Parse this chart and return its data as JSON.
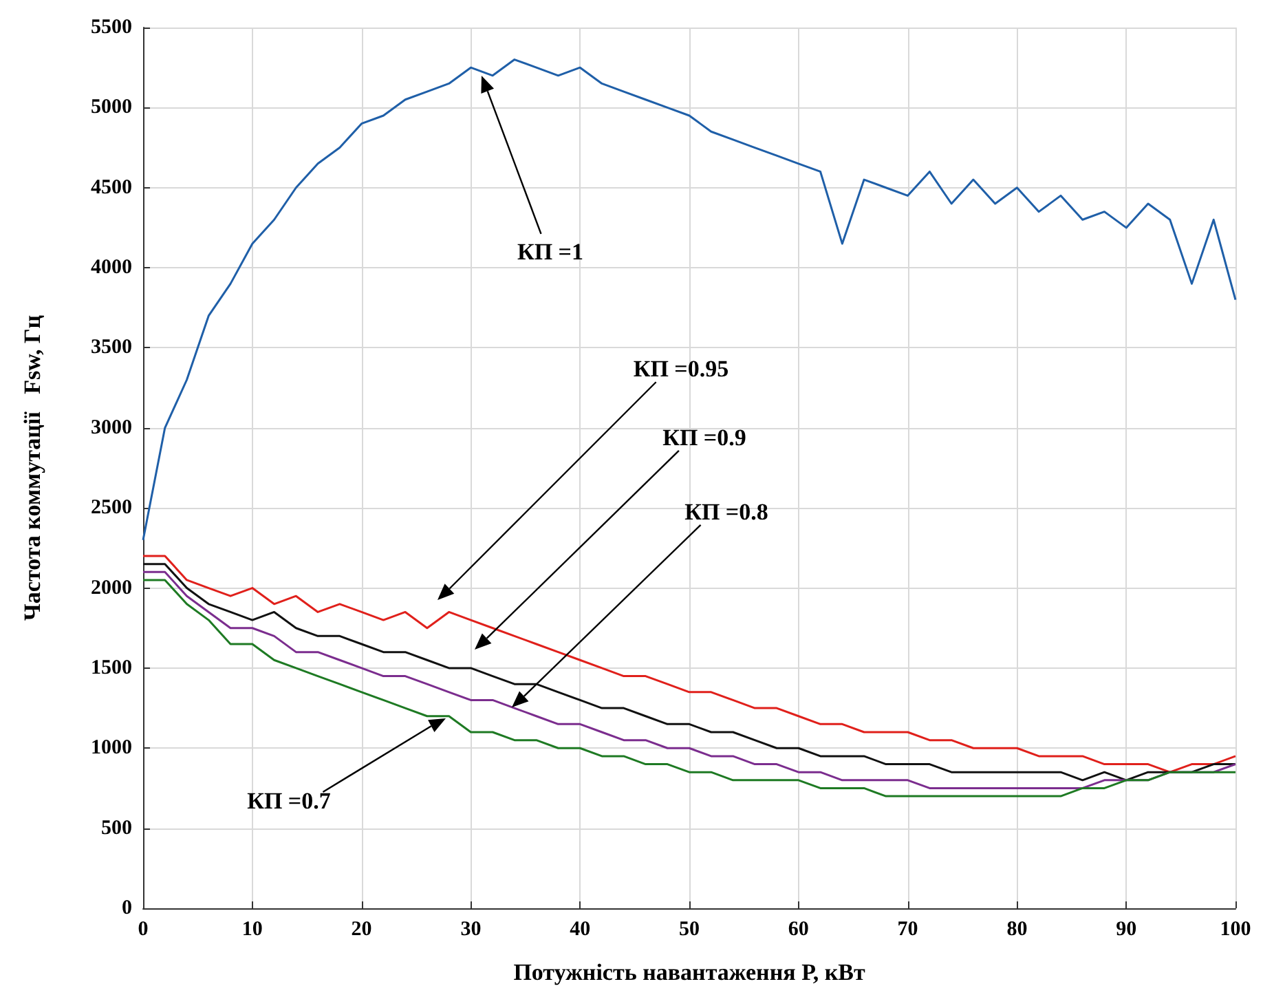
{
  "chart_data": {
    "type": "line",
    "xlabel": "Потужність навантаження Р, кВт",
    "ylabel": "Частота коммутації   Fsw, Гц",
    "x": [
      0,
      2,
      4,
      6,
      8,
      10,
      12,
      14,
      16,
      18,
      20,
      22,
      24,
      26,
      28,
      30,
      32,
      34,
      36,
      38,
      40,
      42,
      44,
      46,
      48,
      50,
      52,
      54,
      56,
      58,
      60,
      62,
      64,
      66,
      68,
      70,
      72,
      74,
      76,
      78,
      80,
      82,
      84,
      86,
      88,
      90,
      92,
      94,
      96,
      98,
      100
    ],
    "series": [
      {
        "color": "#1f5fa8",
        "values": [
          2300,
          3000,
          3300,
          3700,
          3900,
          4150,
          4300,
          4500,
          4650,
          4750,
          4900,
          4950,
          5050,
          5100,
          5150,
          5250,
          5200,
          5300,
          5250,
          5200,
          5250,
          5150,
          5100,
          5050,
          5000,
          4950,
          4850,
          4800,
          4750,
          4700,
          4650,
          4600,
          4150,
          4550,
          4500,
          4450,
          4600,
          4400,
          4550,
          4400,
          4500,
          4350,
          4450,
          4300,
          4350,
          4250,
          4400,
          4300,
          3900,
          4300,
          3800
        ]
      },
      {
        "color": "#e0201b",
        "values": [
          2200,
          2200,
          2050,
          2000,
          1950,
          2000,
          1900,
          1950,
          1850,
          1900,
          1850,
          1800,
          1850,
          1750,
          1850,
          1800,
          1750,
          1700,
          1650,
          1600,
          1550,
          1500,
          1450,
          1450,
          1400,
          1350,
          1350,
          1300,
          1250,
          1250,
          1200,
          1150,
          1150,
          1100,
          1100,
          1100,
          1050,
          1050,
          1000,
          1000,
          1000,
          950,
          950,
          950,
          900,
          900,
          900,
          850,
          900,
          900,
          950
        ]
      },
      {
        "color": "#111111",
        "values": [
          2150,
          2150,
          2000,
          1900,
          1850,
          1800,
          1850,
          1750,
          1700,
          1700,
          1650,
          1600,
          1600,
          1550,
          1500,
          1500,
          1450,
          1400,
          1400,
          1350,
          1300,
          1250,
          1250,
          1200,
          1150,
          1150,
          1100,
          1100,
          1050,
          1000,
          1000,
          950,
          950,
          950,
          900,
          900,
          900,
          850,
          850,
          850,
          850,
          850,
          850,
          800,
          850,
          800,
          850,
          850,
          850,
          900,
          900
        ]
      },
      {
        "color": "#7b2d8e",
        "values": [
          2100,
          2100,
          1950,
          1850,
          1750,
          1750,
          1700,
          1600,
          1600,
          1550,
          1500,
          1450,
          1450,
          1400,
          1350,
          1300,
          1300,
          1250,
          1200,
          1150,
          1150,
          1100,
          1050,
          1050,
          1000,
          1000,
          950,
          950,
          900,
          900,
          850,
          850,
          800,
          800,
          800,
          800,
          750,
          750,
          750,
          750,
          750,
          750,
          750,
          750,
          800,
          800,
          800,
          850,
          850,
          850,
          900
        ]
      },
      {
        "color": "#1e7a23",
        "values": [
          2050,
          2050,
          1900,
          1800,
          1650,
          1650,
          1550,
          1500,
          1450,
          1400,
          1350,
          1300,
          1250,
          1200,
          1200,
          1100,
          1100,
          1050,
          1050,
          1000,
          1000,
          950,
          950,
          900,
          900,
          850,
          850,
          800,
          800,
          800,
          800,
          750,
          750,
          750,
          700,
          700,
          700,
          700,
          700,
          700,
          700,
          700,
          700,
          750,
          750,
          800,
          800,
          850,
          850,
          850,
          850
        ]
      }
    ],
    "annotations": [
      "КП =1",
      "КП =0.95",
      "КП =0.9",
      "КП =0.8",
      "КП =0.7"
    ],
    "xlim": [
      0,
      100
    ],
    "xticks": [
      0,
      10,
      20,
      30,
      40,
      50,
      60,
      70,
      80,
      90,
      100
    ],
    "ylim": [
      0,
      5500
    ],
    "yticks": [
      0,
      500,
      1000,
      1500,
      2000,
      2500,
      3000,
      3500,
      4000,
      4500,
      5000,
      5500
    ],
    "grid": true,
    "marker": "none",
    "line_style": "solid"
  }
}
